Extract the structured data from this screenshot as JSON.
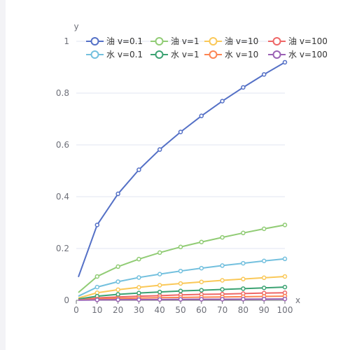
{
  "chart_data": {
    "type": "line",
    "xlabel": "x",
    "ylabel": "y",
    "xlim": [
      0,
      100
    ],
    "ylim": [
      0,
      1
    ],
    "x_ticks": [
      "0",
      "10",
      "20",
      "30",
      "40",
      "50",
      "60",
      "70",
      "80",
      "90",
      "100"
    ],
    "y_ticks": [
      "0",
      "0.2",
      "0.4",
      "0.6",
      "0.8",
      "1"
    ],
    "grid": "horizontal",
    "legend_position": "top",
    "x": [
      0,
      10,
      20,
      30,
      40,
      50,
      60,
      70,
      80,
      90,
      100
    ],
    "series": [
      {
        "name": "油 v=0.1",
        "color": "#5470c6",
        "values": [
          0.09,
          0.291,
          0.411,
          0.504,
          0.582,
          0.65,
          0.712,
          0.769,
          0.822,
          0.872,
          0.919
        ]
      },
      {
        "name": "油 v=1",
        "color": "#91cc75",
        "values": [
          0.03,
          0.092,
          0.13,
          0.159,
          0.184,
          0.206,
          0.225,
          0.243,
          0.26,
          0.276,
          0.291
        ]
      },
      {
        "name": "油 v=10",
        "color": "#fac858",
        "values": [
          0.009,
          0.029,
          0.041,
          0.05,
          0.058,
          0.065,
          0.071,
          0.077,
          0.082,
          0.087,
          0.092
        ]
      },
      {
        "name": "油 v=100",
        "color": "#ee6666",
        "values": [
          0.003,
          0.009,
          0.013,
          0.016,
          0.018,
          0.021,
          0.023,
          0.024,
          0.026,
          0.028,
          0.029
        ]
      },
      {
        "name": "水 v=0.1",
        "color": "#73c0de",
        "values": [
          0.016,
          0.051,
          0.072,
          0.088,
          0.101,
          0.113,
          0.124,
          0.134,
          0.143,
          0.152,
          0.16
        ]
      },
      {
        "name": "水 v=1",
        "color": "#3ba272",
        "values": [
          0.005,
          0.016,
          0.023,
          0.028,
          0.032,
          0.036,
          0.039,
          0.042,
          0.045,
          0.048,
          0.051
        ]
      },
      {
        "name": "水 v=10",
        "color": "#fc8452",
        "values": [
          0.0016,
          0.005,
          0.007,
          0.0088,
          0.01,
          0.011,
          0.012,
          0.013,
          0.014,
          0.015,
          0.016
        ]
      },
      {
        "name": "水 v=100",
        "color": "#9a60b4",
        "values": [
          0.0005,
          0.0016,
          0.0023,
          0.0028,
          0.0032,
          0.0036,
          0.0039,
          0.0042,
          0.0045,
          0.0048,
          0.0051
        ]
      }
    ]
  }
}
